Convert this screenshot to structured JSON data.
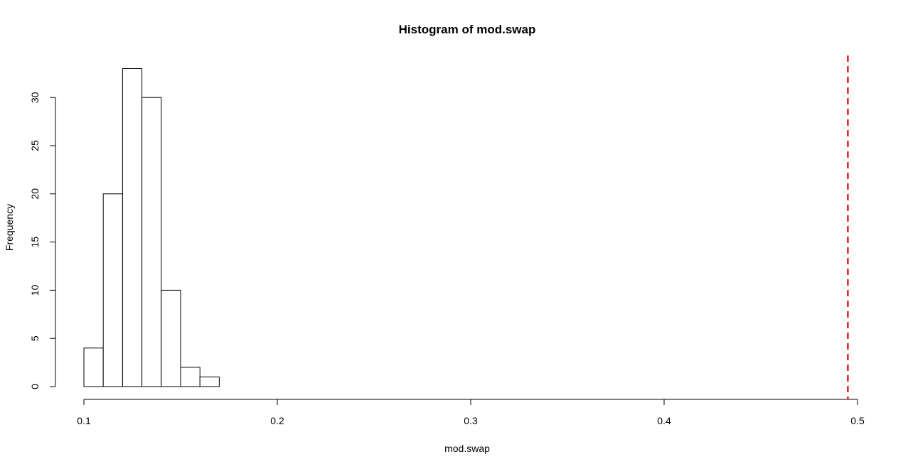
{
  "chart_data": {
    "type": "bar",
    "subtype": "histogram",
    "title": "Histogram of mod.swap",
    "xlabel": "mod.swap",
    "ylabel": "Frequency",
    "bins": [
      {
        "start": 0.1,
        "end": 0.11,
        "count": 4
      },
      {
        "start": 0.11,
        "end": 0.12,
        "count": 20
      },
      {
        "start": 0.12,
        "end": 0.13,
        "count": 33
      },
      {
        "start": 0.13,
        "end": 0.14,
        "count": 30
      },
      {
        "start": 0.14,
        "end": 0.15,
        "count": 10
      },
      {
        "start": 0.15,
        "end": 0.16,
        "count": 2
      },
      {
        "start": 0.16,
        "end": 0.17,
        "count": 1
      }
    ],
    "xlim": [
      0.1,
      0.5
    ],
    "ylim": [
      0,
      33
    ],
    "xticks": [
      {
        "value": 0.1,
        "label": "0.1"
      },
      {
        "value": 0.2,
        "label": "0.2"
      },
      {
        "value": 0.3,
        "label": "0.3"
      },
      {
        "value": 0.4,
        "label": "0.4"
      },
      {
        "value": 0.5,
        "label": "0.5"
      }
    ],
    "yticks": [
      {
        "value": 0,
        "label": "0"
      },
      {
        "value": 5,
        "label": "5"
      },
      {
        "value": 10,
        "label": "10"
      },
      {
        "value": 15,
        "label": "15"
      },
      {
        "value": 20,
        "label": "20"
      },
      {
        "value": 25,
        "label": "25"
      },
      {
        "value": 30,
        "label": "30"
      }
    ],
    "reference_line": {
      "x": 0.495,
      "color": "#e02020",
      "style": "dashed"
    },
    "grid": false,
    "bar_fill": "#ffffff",
    "bar_stroke": "#000000"
  }
}
